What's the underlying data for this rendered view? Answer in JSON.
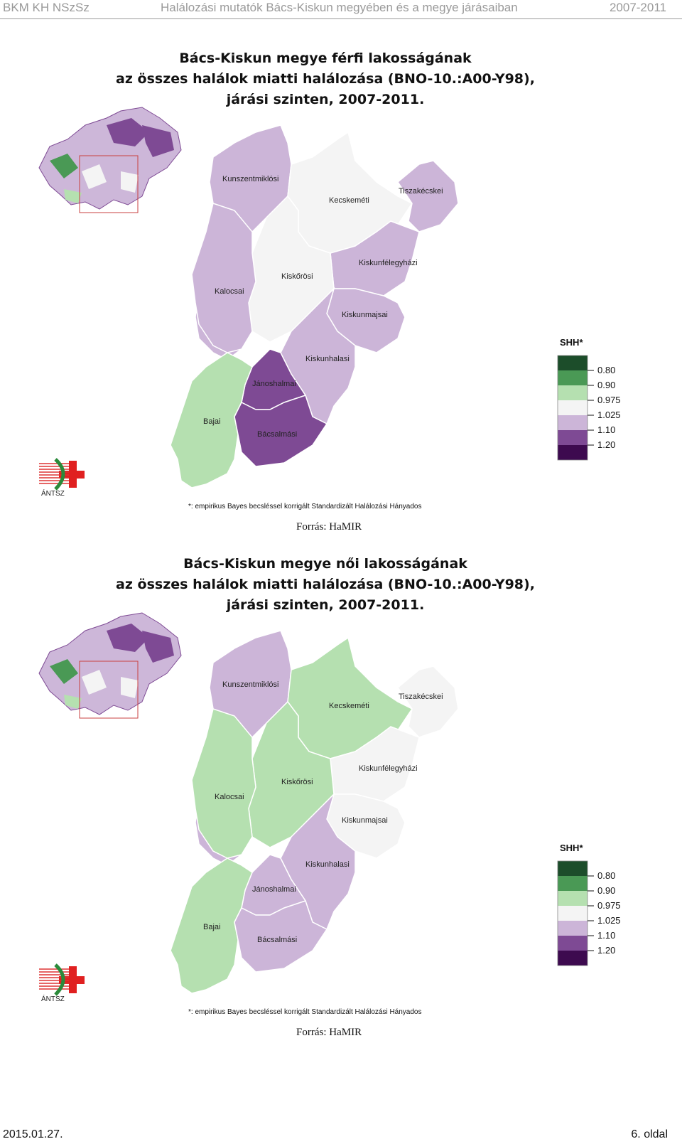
{
  "header": {
    "left": "BKM KH NSzSz",
    "center": "Halálozási mutatók Bács-Kiskun megyében és a megye járásaiban",
    "right": "2007-2011"
  },
  "colors": {
    "0.80": "#1c4d2a",
    "0.90": "#4a9955",
    "0.975": "#b5e0b0",
    "1.025": "#f4f4f4",
    "1.10": "#ccb5d8",
    "1.20": "#7e4a94",
    "max": "#3d0a4f"
  },
  "maps": [
    {
      "title_lines": [
        "Bács-Kiskun megye férfi lakosságának",
        "az összes halálok miatti halálozása (BNO-10.:A00-Y98),",
        "járási szinten, 2007-2011."
      ],
      "districts": {
        "Kunszentmiklósi": "1.10",
        "Kecskeméti": "1.025",
        "Tiszakécskei": "1.10",
        "Kiskunfélegyházi": "1.10",
        "Kiskőrösi": "1.025",
        "Kalocsai": "1.10",
        "Kiskunmajsai": "1.10",
        "Kiskunhalasi": "1.10",
        "Jánoshalmai": "1.20",
        "Bajai": "0.975",
        "Bácsalmási": "1.20"
      },
      "legend_title": "SHH*",
      "legend_labels": [
        "0.80",
        "0.90",
        "0.975",
        "1.025",
        "1.10",
        "1.20"
      ],
      "logo_text": "ÁNTSZ",
      "footnote": "*: empirikus Bayes becsléssel korrigált Standardizált Halálozási Hányados",
      "source": "Forrás: HaMIR"
    },
    {
      "title_lines": [
        "Bács-Kiskun megye női lakosságának",
        "az összes halálok miatti halálozása (BNO-10.:A00-Y98),",
        "járási szinten, 2007-2011."
      ],
      "districts": {
        "Kunszentmiklósi": "1.10",
        "Kecskeméti": "0.975",
        "Tiszakécskei": "1.025",
        "Kiskunfélegyházi": "1.025",
        "Kiskőrösi": "0.975",
        "Kalocsai": "0.975",
        "Kiskunmajsai": "1.025",
        "Kiskunhalasi": "1.10",
        "Jánoshalmai": "1.10",
        "Bajai": "0.975",
        "Bácsalmási": "1.10"
      },
      "legend_title": "SHH*",
      "legend_labels": [
        "0.80",
        "0.90",
        "0.975",
        "1.025",
        "1.10",
        "1.20"
      ],
      "logo_text": "ÁNTSZ",
      "footnote": "*: empirikus Bayes becsléssel korrigált Standardizált Halálozási Hányados",
      "source": "Forrás: HaMIR"
    }
  ],
  "footer": {
    "date": "2015.01.27.",
    "page": "6. oldal"
  }
}
